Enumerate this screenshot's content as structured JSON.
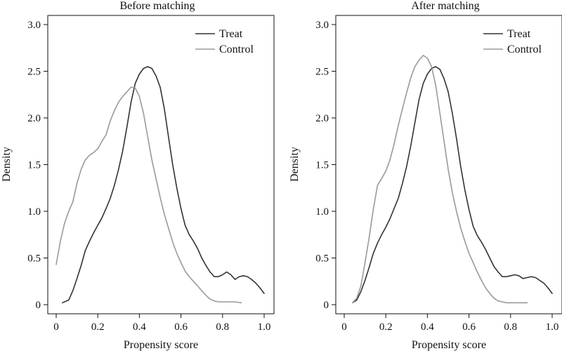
{
  "chart_data": [
    {
      "type": "line",
      "title": "Before matching",
      "xlabel": "Propensity score",
      "ylabel": "Density",
      "xlim": [
        0,
        1
      ],
      "ylim": [
        0,
        3
      ],
      "x_ticks": [
        "0",
        "0.2",
        "0.4",
        "0.6",
        "0.8",
        "1.0"
      ],
      "y_ticks": [
        "0",
        "0.5",
        "1.0",
        "1.5",
        "2.0",
        "2.5",
        "3.0"
      ],
      "legend_position": "top-right",
      "grid": false,
      "series": [
        {
          "name": "Treat",
          "color": "#333333",
          "points": [
            [
              0.03,
              0.02
            ],
            [
              0.06,
              0.05
            ],
            [
              0.08,
              0.15
            ],
            [
              0.1,
              0.28
            ],
            [
              0.12,
              0.42
            ],
            [
              0.14,
              0.58
            ],
            [
              0.16,
              0.68
            ],
            [
              0.18,
              0.77
            ],
            [
              0.2,
              0.85
            ],
            [
              0.22,
              0.93
            ],
            [
              0.24,
              1.03
            ],
            [
              0.26,
              1.14
            ],
            [
              0.28,
              1.28
            ],
            [
              0.3,
              1.45
            ],
            [
              0.32,
              1.65
            ],
            [
              0.34,
              1.9
            ],
            [
              0.36,
              2.17
            ],
            [
              0.38,
              2.37
            ],
            [
              0.4,
              2.47
            ],
            [
              0.42,
              2.53
            ],
            [
              0.44,
              2.55
            ],
            [
              0.46,
              2.53
            ],
            [
              0.48,
              2.45
            ],
            [
              0.5,
              2.33
            ],
            [
              0.52,
              2.1
            ],
            [
              0.54,
              1.8
            ],
            [
              0.56,
              1.5
            ],
            [
              0.58,
              1.25
            ],
            [
              0.6,
              1.03
            ],
            [
              0.62,
              0.85
            ],
            [
              0.64,
              0.75
            ],
            [
              0.66,
              0.68
            ],
            [
              0.68,
              0.6
            ],
            [
              0.7,
              0.5
            ],
            [
              0.72,
              0.42
            ],
            [
              0.74,
              0.35
            ],
            [
              0.76,
              0.3
            ],
            [
              0.78,
              0.3
            ],
            [
              0.8,
              0.32
            ],
            [
              0.82,
              0.35
            ],
            [
              0.84,
              0.32
            ],
            [
              0.86,
              0.27
            ],
            [
              0.88,
              0.3
            ],
            [
              0.9,
              0.31
            ],
            [
              0.92,
              0.3
            ],
            [
              0.94,
              0.27
            ],
            [
              0.96,
              0.23
            ],
            [
              0.98,
              0.18
            ],
            [
              1.0,
              0.12
            ]
          ]
        },
        {
          "name": "Control",
          "color": "#9a9a9a",
          "points": [
            [
              0.0,
              0.43
            ],
            [
              0.02,
              0.68
            ],
            [
              0.04,
              0.87
            ],
            [
              0.06,
              1.0
            ],
            [
              0.08,
              1.1
            ],
            [
              0.1,
              1.3
            ],
            [
              0.12,
              1.45
            ],
            [
              0.14,
              1.55
            ],
            [
              0.16,
              1.6
            ],
            [
              0.18,
              1.63
            ],
            [
              0.2,
              1.67
            ],
            [
              0.22,
              1.75
            ],
            [
              0.24,
              1.82
            ],
            [
              0.26,
              1.97
            ],
            [
              0.28,
              2.08
            ],
            [
              0.3,
              2.17
            ],
            [
              0.32,
              2.23
            ],
            [
              0.34,
              2.28
            ],
            [
              0.36,
              2.33
            ],
            [
              0.38,
              2.32
            ],
            [
              0.4,
              2.23
            ],
            [
              0.42,
              2.05
            ],
            [
              0.44,
              1.8
            ],
            [
              0.46,
              1.55
            ],
            [
              0.48,
              1.35
            ],
            [
              0.5,
              1.15
            ],
            [
              0.52,
              0.97
            ],
            [
              0.54,
              0.82
            ],
            [
              0.56,
              0.67
            ],
            [
              0.58,
              0.55
            ],
            [
              0.6,
              0.45
            ],
            [
              0.62,
              0.36
            ],
            [
              0.64,
              0.3
            ],
            [
              0.66,
              0.25
            ],
            [
              0.68,
              0.2
            ],
            [
              0.7,
              0.15
            ],
            [
              0.72,
              0.1
            ],
            [
              0.74,
              0.06
            ],
            [
              0.76,
              0.04
            ],
            [
              0.78,
              0.03
            ],
            [
              0.8,
              0.03
            ],
            [
              0.83,
              0.03
            ],
            [
              0.86,
              0.03
            ],
            [
              0.89,
              0.02
            ]
          ]
        }
      ]
    },
    {
      "type": "line",
      "title": "After matching",
      "xlabel": "Propensity score",
      "ylabel": "Density",
      "xlim": [
        0,
        1
      ],
      "ylim": [
        0,
        3
      ],
      "x_ticks": [
        "0",
        "0.2",
        "0.4",
        "0.6",
        "0.8",
        "1.0"
      ],
      "y_ticks": [
        "0",
        "0.5",
        "1.0",
        "1.5",
        "2.0",
        "2.5",
        "3.0"
      ],
      "legend_position": "top-right",
      "grid": false,
      "series": [
        {
          "name": "Treat",
          "color": "#333333",
          "points": [
            [
              0.04,
              0.02
            ],
            [
              0.06,
              0.05
            ],
            [
              0.08,
              0.14
            ],
            [
              0.1,
              0.26
            ],
            [
              0.12,
              0.4
            ],
            [
              0.14,
              0.55
            ],
            [
              0.16,
              0.66
            ],
            [
              0.18,
              0.75
            ],
            [
              0.2,
              0.83
            ],
            [
              0.22,
              0.92
            ],
            [
              0.24,
              1.03
            ],
            [
              0.26,
              1.14
            ],
            [
              0.28,
              1.3
            ],
            [
              0.3,
              1.48
            ],
            [
              0.32,
              1.7
            ],
            [
              0.34,
              1.95
            ],
            [
              0.36,
              2.2
            ],
            [
              0.38,
              2.37
            ],
            [
              0.4,
              2.47
            ],
            [
              0.42,
              2.53
            ],
            [
              0.44,
              2.55
            ],
            [
              0.46,
              2.52
            ],
            [
              0.48,
              2.42
            ],
            [
              0.5,
              2.28
            ],
            [
              0.52,
              2.05
            ],
            [
              0.54,
              1.78
            ],
            [
              0.56,
              1.48
            ],
            [
              0.58,
              1.23
            ],
            [
              0.6,
              1.02
            ],
            [
              0.62,
              0.84
            ],
            [
              0.64,
              0.74
            ],
            [
              0.66,
              0.67
            ],
            [
              0.68,
              0.59
            ],
            [
              0.7,
              0.5
            ],
            [
              0.72,
              0.41
            ],
            [
              0.74,
              0.35
            ],
            [
              0.76,
              0.3
            ],
            [
              0.78,
              0.3
            ],
            [
              0.8,
              0.31
            ],
            [
              0.82,
              0.32
            ],
            [
              0.84,
              0.31
            ],
            [
              0.86,
              0.28
            ],
            [
              0.88,
              0.29
            ],
            [
              0.9,
              0.3
            ],
            [
              0.92,
              0.29
            ],
            [
              0.94,
              0.26
            ],
            [
              0.96,
              0.23
            ],
            [
              0.98,
              0.18
            ],
            [
              1.0,
              0.12
            ]
          ]
        },
        {
          "name": "Control",
          "color": "#9a9a9a",
          "points": [
            [
              0.04,
              0.02
            ],
            [
              0.06,
              0.07
            ],
            [
              0.08,
              0.2
            ],
            [
              0.1,
              0.45
            ],
            [
              0.12,
              0.72
            ],
            [
              0.14,
              1.02
            ],
            [
              0.16,
              1.28
            ],
            [
              0.18,
              1.35
            ],
            [
              0.2,
              1.43
            ],
            [
              0.22,
              1.55
            ],
            [
              0.24,
              1.72
            ],
            [
              0.26,
              1.92
            ],
            [
              0.28,
              2.1
            ],
            [
              0.3,
              2.27
            ],
            [
              0.32,
              2.43
            ],
            [
              0.34,
              2.55
            ],
            [
              0.36,
              2.62
            ],
            [
              0.38,
              2.67
            ],
            [
              0.4,
              2.64
            ],
            [
              0.42,
              2.55
            ],
            [
              0.44,
              2.35
            ],
            [
              0.46,
              2.05
            ],
            [
              0.48,
              1.75
            ],
            [
              0.5,
              1.45
            ],
            [
              0.52,
              1.2
            ],
            [
              0.54,
              1.0
            ],
            [
              0.56,
              0.82
            ],
            [
              0.58,
              0.68
            ],
            [
              0.6,
              0.55
            ],
            [
              0.62,
              0.45
            ],
            [
              0.64,
              0.35
            ],
            [
              0.66,
              0.26
            ],
            [
              0.68,
              0.18
            ],
            [
              0.7,
              0.12
            ],
            [
              0.72,
              0.07
            ],
            [
              0.74,
              0.04
            ],
            [
              0.76,
              0.03
            ],
            [
              0.78,
              0.02
            ],
            [
              0.8,
              0.02
            ],
            [
              0.83,
              0.02
            ],
            [
              0.86,
              0.02
            ],
            [
              0.88,
              0.02
            ]
          ]
        }
      ]
    }
  ]
}
